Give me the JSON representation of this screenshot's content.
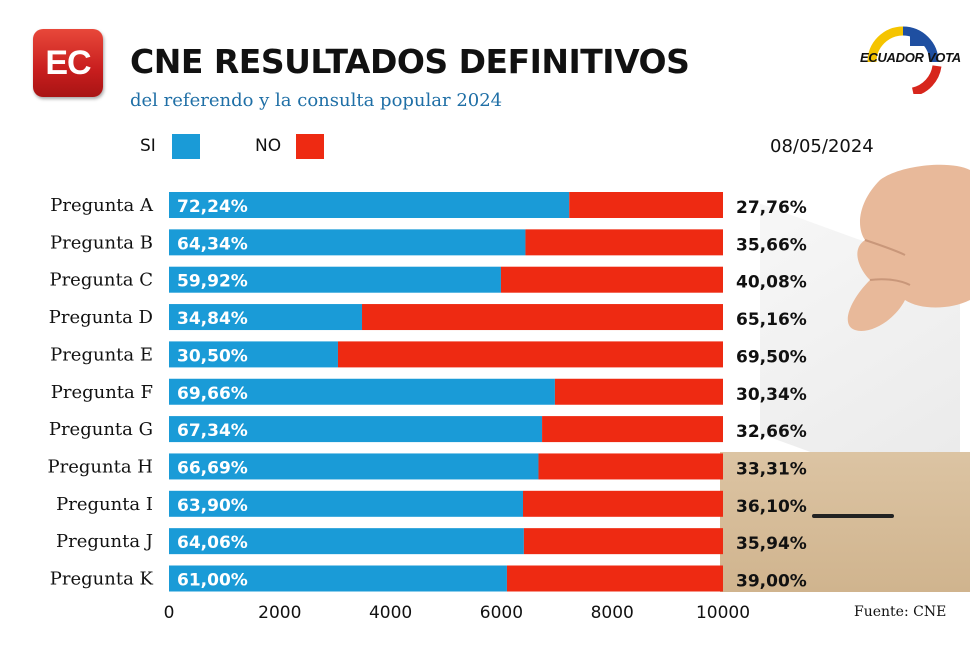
{
  "header": {
    "logo_text": "EC",
    "title": "CNE RESULTADOS DEFINITIVOS",
    "subtitle": "del referendo y la consulta popular 2024",
    "brand_text": "ECUADOR VOTA",
    "date": "08/05/2024",
    "source": "Fuente: CNE"
  },
  "colors": {
    "si": "#1a9bd7",
    "no": "#ee2a12",
    "text": "#111111",
    "subtitle": "#1f6fa6"
  },
  "chart_data": {
    "type": "bar",
    "orientation": "horizontal",
    "stacked": true,
    "categories": [
      "Pregunta A",
      "Pregunta B",
      "Pregunta C",
      "Pregunta D",
      "Pregunta E",
      "Pregunta F",
      "Pregunta G",
      "Pregunta H",
      "Pregunta I",
      "Pregunta J",
      "Pregunta K"
    ],
    "series": [
      {
        "name": "SI",
        "color": "#1a9bd7",
        "values": [
          7224,
          6434,
          5992,
          3484,
          3050,
          6966,
          6734,
          6669,
          6390,
          6406,
          6100
        ],
        "labels": [
          "72,24%",
          "64,34%",
          "59,92%",
          "34,84%",
          "30,50%",
          "69,66%",
          "67,34%",
          "66,69%",
          "63,90%",
          "64,06%",
          "61,00%"
        ]
      },
      {
        "name": "NO",
        "color": "#ee2a12",
        "values": [
          2776,
          3566,
          4008,
          6516,
          6950,
          3034,
          3266,
          3331,
          3610,
          3594,
          3900
        ],
        "labels": [
          "27,76%",
          "35,66%",
          "40,08%",
          "65,16%",
          "69,50%",
          "30,34%",
          "32,66%",
          "33,31%",
          "36,10%",
          "35,94%",
          "39,00%"
        ]
      }
    ],
    "xlim": [
      0,
      10000
    ],
    "xticks": [
      "0",
      "2000",
      "4000",
      "6000",
      "8000",
      "10000"
    ],
    "legend_position": "top-left",
    "grid": false
  }
}
